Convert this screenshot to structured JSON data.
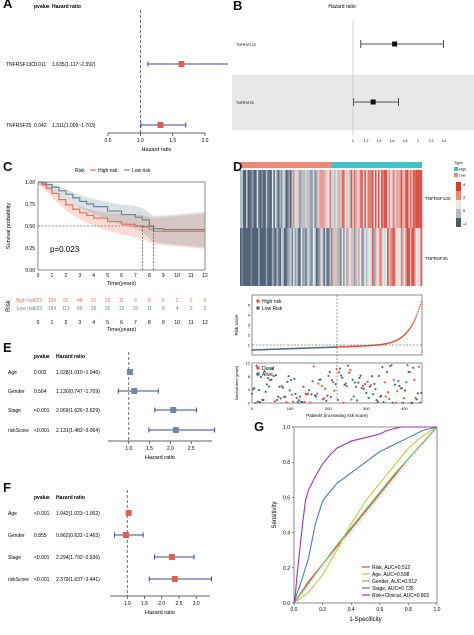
{
  "panel_labels": [
    "A",
    "B",
    "C",
    "D",
    "E",
    "F",
    "G"
  ],
  "chart_data": [
    {
      "panel": "A",
      "type": "forest",
      "col_headers": [
        "pvalue",
        "Hazard ratio"
      ],
      "rows": [
        {
          "label": "TNFRSF13C",
          "pvalue": "0.011",
          "hr_text": "1.635(1.117~2.392)",
          "hr": 1.635,
          "lo": 1.117,
          "hi": 2.392
        },
        {
          "label": "TNFRSF25",
          "pvalue": "0.042",
          "hr_text": "1.311(1.009~1.703)",
          "hr": 1.311,
          "lo": 1.009,
          "hi": 1.703
        }
      ],
      "xlim": [
        0.5,
        2.0
      ],
      "ticks": [
        "0.5",
        "1.0",
        "1.5",
        "2.0"
      ],
      "xlabel": "Hazard ratio",
      "colors": {
        "point": "#e0604d",
        "ci": "#3b4a9a"
      }
    },
    {
      "panel": "B",
      "type": "forest",
      "title": "Hazard ratio",
      "rows": [
        {
          "label": "TNFRSF13C",
          "hr": 1.64,
          "lo": 1.12,
          "hi": 2.39
        },
        {
          "label": "TNFRSF25",
          "hr": 1.31,
          "lo": 1.01,
          "hi": 1.7
        }
      ],
      "xlim": [
        0.8,
        2.6
      ],
      "ticks": [
        "1",
        "1.2",
        "1.4",
        "1.6",
        "1.8",
        "2",
        "2.2",
        "2.4"
      ],
      "colors": {
        "point": "#111111",
        "band": "#e8e8e8"
      }
    },
    {
      "panel": "C",
      "type": "line",
      "legend_title": "Risk",
      "series": [
        {
          "name": "High risk",
          "color": "#e8735a",
          "x": [
            0,
            0.3,
            0.6,
            1,
            1.5,
            2,
            2.5,
            3,
            3.5,
            4,
            5,
            6,
            7,
            7.5,
            8,
            8.3,
            9,
            10,
            12
          ],
          "y": [
            1.0,
            0.97,
            0.93,
            0.87,
            0.8,
            0.74,
            0.69,
            0.65,
            0.62,
            0.59,
            0.55,
            0.52,
            0.5,
            0.49,
            0.46,
            0.44,
            0.44,
            0.44,
            0.44
          ]
        },
        {
          "name": "Low risk",
          "color": "#6f8795",
          "x": [
            0,
            0.3,
            0.6,
            1,
            1.5,
            2,
            2.5,
            3,
            3.5,
            4,
            5,
            6,
            7,
            7.5,
            8,
            8.3,
            9,
            10,
            12
          ],
          "y": [
            1.0,
            0.99,
            0.97,
            0.94,
            0.9,
            0.86,
            0.82,
            0.78,
            0.75,
            0.72,
            0.67,
            0.63,
            0.6,
            0.57,
            0.5,
            0.47,
            0.46,
            0.46,
            0.46
          ]
        }
      ],
      "pvalue": "p=0.023",
      "xlim": [
        0,
        12
      ],
      "ylim": [
        0,
        1
      ],
      "xticks": [
        "0",
        "1",
        "2",
        "3",
        "4",
        "5",
        "6",
        "7",
        "8",
        "9",
        "10",
        "11",
        "12"
      ],
      "yticks": [
        "0.00",
        "0.25",
        "0.50",
        "0.75",
        "1.00"
      ],
      "xlabel": "Time(years)",
      "ylabel": "Survival probability",
      "risk_table": {
        "title": "Risk",
        "rows": [
          {
            "name": "High risk",
            "values": [
              "223",
              "159",
              "92",
              "46",
              "21",
              "16",
              "11",
              "9",
              "8",
              "5",
              "2",
              "2",
              "0"
            ]
          },
          {
            "name": "Low risk",
            "values": [
              "223",
              "184",
              "113",
              "60",
              "35",
              "26",
              "16",
              "15",
              "11",
              "9",
              "4",
              "2",
              "0"
            ]
          }
        ],
        "xlabel": "Time(years)"
      }
    },
    {
      "panel": "D",
      "type": "heatmap",
      "genes": [
        "TNFRSF13C",
        "TNFRSF25"
      ],
      "legend_title": "Type",
      "legend_entries": [
        "High",
        "Low"
      ],
      "scale": [
        "4",
        "2",
        "0",
        "-2"
      ],
      "risk_score": {
        "legend": [
          "High risk",
          "Low Risk"
        ],
        "ylabel": "Risk score",
        "ylim": [
          0,
          6
        ],
        "yticks": [
          "1",
          "2",
          "3",
          "4",
          "5"
        ],
        "cutoff": 223,
        "n": 446
      },
      "survival_scatter": {
        "legend": [
          "Dead",
          "Alive"
        ],
        "ylabel": "Survival time (years)",
        "ylim": [
          0,
          12
        ],
        "yticks": [
          "0",
          "2",
          "4",
          "6",
          "8",
          "10",
          "12"
        ],
        "xticks": [
          "0",
          "100",
          "200",
          "300",
          "400"
        ],
        "xlabel": "Patients (increasing risk score)"
      }
    },
    {
      "panel": "E",
      "type": "forest",
      "col_headers": [
        "pvalue",
        "Hazard ratio"
      ],
      "rows": [
        {
          "label": "Age",
          "pvalue": "0.002",
          "hr_text": "1.028(1.010~1.046)",
          "hr": 1.028,
          "lo": 1.01,
          "hi": 1.046
        },
        {
          "label": "Gender",
          "pvalue": "0.564",
          "hr_text": "1.130(0.747~1.709)",
          "hr": 1.13,
          "lo": 0.747,
          "hi": 1.709
        },
        {
          "label": "Stage",
          "pvalue": "<0.001",
          "hr_text": "2.069(1.626~2.629)",
          "hr": 2.069,
          "lo": 1.626,
          "hi": 2.629
        },
        {
          "label": "riskScore",
          "pvalue": "<0.001",
          "hr_text": "2.131(1.482~3.064)",
          "hr": 2.131,
          "lo": 1.482,
          "hi": 3.064
        }
      ],
      "xlim": [
        0.5,
        3.0
      ],
      "ticks": [
        "1.0",
        "1.5",
        "2.0",
        "2.5"
      ],
      "xlabel": "Hazard ratio",
      "colors": {
        "point": "#6f87a8",
        "ci": "#3b4a9a"
      }
    },
    {
      "panel": "F",
      "type": "forest",
      "col_headers": [
        "pvalue",
        "Hazard ratio"
      ],
      "rows": [
        {
          "label": "Age",
          "pvalue": "<0.001",
          "hr_text": "1.042(1.023~1.062)",
          "hr": 1.042,
          "lo": 1.023,
          "hi": 1.062
        },
        {
          "label": "Gender",
          "pvalue": "0.855",
          "hr_text": "0.962(0.632~1.463)",
          "hr": 0.962,
          "lo": 0.632,
          "hi": 1.463
        },
        {
          "label": "Stage",
          "pvalue": "<0.001",
          "hr_text": "2.294(1.792~2.936)",
          "hr": 2.294,
          "lo": 1.792,
          "hi": 2.936
        },
        {
          "label": "riskScore",
          "pvalue": "<0.001",
          "hr_text": "2.379(1.637~3.441)",
          "hr": 2.379,
          "lo": 1.637,
          "hi": 3.441
        }
      ],
      "xlim": [
        0.5,
        3.4
      ],
      "ticks": [
        "1.0",
        "1.5",
        "2.0",
        "2.5",
        "3.0"
      ],
      "xlabel": "Hazard ratio",
      "colors": {
        "point": "#e0604d",
        "ci": "#3b4a9a"
      }
    },
    {
      "panel": "G",
      "type": "line",
      "xlim": [
        0,
        1
      ],
      "ylim": [
        0,
        1
      ],
      "xticks": [
        "0.0",
        "0.2",
        "0.4",
        "0.6",
        "0.8",
        "1.0"
      ],
      "yticks": [
        "0.0",
        "0.2",
        "0.4",
        "0.6",
        "0.8",
        "1.0"
      ],
      "xlabel": "1-Specificity",
      "ylabel": "Sensitivity",
      "series": [
        {
          "name": "Risk, AUC=0.512",
          "color": "#e0453a",
          "x": [
            0,
            0.1,
            0.2,
            0.3,
            0.4,
            0.5,
            0.6,
            0.7,
            0.8,
            0.9,
            1.0
          ],
          "y": [
            0,
            0.12,
            0.22,
            0.32,
            0.42,
            0.52,
            0.62,
            0.72,
            0.82,
            0.91,
            1.0
          ]
        },
        {
          "name": "Age, AUC=0.598",
          "color": "#c9c93a",
          "x": [
            0,
            0.1,
            0.2,
            0.3,
            0.4,
            0.5,
            0.6,
            0.7,
            0.8,
            0.9,
            1.0
          ],
          "y": [
            0,
            0.06,
            0.16,
            0.3,
            0.45,
            0.58,
            0.68,
            0.78,
            0.88,
            0.95,
            1.0
          ]
        },
        {
          "name": "Gender, AUC=0.512",
          "color": "#6fc06f",
          "x": [
            0,
            0.1,
            0.2,
            0.3,
            0.4,
            0.5,
            0.6,
            0.7,
            0.8,
            0.9,
            1.0
          ],
          "y": [
            0,
            0.11,
            0.22,
            0.33,
            0.43,
            0.53,
            0.63,
            0.73,
            0.82,
            0.91,
            1.0
          ]
        },
        {
          "name": "Stage, AUC=0.735",
          "color": "#4a7ab5",
          "x": [
            0,
            0.02,
            0.05,
            0.1,
            0.15,
            0.2,
            0.3,
            0.4,
            0.5,
            0.6,
            0.7,
            0.8,
            0.9,
            1.0
          ],
          "y": [
            0,
            0.05,
            0.12,
            0.25,
            0.45,
            0.58,
            0.68,
            0.74,
            0.8,
            0.86,
            0.9,
            0.94,
            0.98,
            1.0
          ]
        },
        {
          "name": "Risk+Clinical, AUC=0.802",
          "color": "#9b36b8",
          "x": [
            0,
            0.01,
            0.02,
            0.04,
            0.06,
            0.08,
            0.1,
            0.15,
            0.2,
            0.25,
            0.3,
            0.4,
            0.5,
            0.6,
            0.65,
            0.7,
            0.75,
            0.8,
            0.9,
            1.0
          ],
          "y": [
            0,
            0.05,
            0.15,
            0.3,
            0.45,
            0.58,
            0.64,
            0.72,
            0.79,
            0.84,
            0.88,
            0.92,
            0.94,
            0.96,
            0.98,
            0.99,
            1.0,
            1.0,
            1.0,
            1.0
          ]
        }
      ]
    }
  ]
}
